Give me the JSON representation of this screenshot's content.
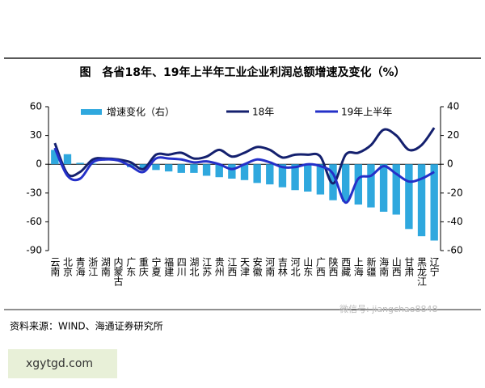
{
  "chart_data": {
    "type": "bar-line",
    "title": "图　各省18年、19年上半年工业企业利润总额增速及变化（%）",
    "source": "资料来源：WIND、海通证券研究所",
    "watermark": "微信号: jiangchao8848",
    "site": "xgytgd.com",
    "categories": [
      "云南",
      "北京",
      "青海",
      "浙江",
      "湖南",
      "内蒙古",
      "广东",
      "重庆",
      "宁夏",
      "福建",
      "四川",
      "湖北",
      "江苏",
      "贵州",
      "江西",
      "天津",
      "安徽",
      "河南",
      "吉林",
      "河北",
      "山东",
      "广西",
      "陕西",
      "西藏",
      "上海",
      "新疆",
      "海南",
      "山西",
      "甘肃",
      "黑龙江",
      "辽宁"
    ],
    "series": [
      {
        "name": "增速变化（右）",
        "type": "bar",
        "axis": "y2",
        "color": "#2fa8de",
        "values": [
          10,
          7,
          1,
          0.5,
          0,
          0,
          -2,
          -3,
          -4,
          -5,
          -6,
          -6,
          -8,
          -9,
          -10,
          -11,
          -13,
          -14,
          -16,
          -18,
          -19,
          -21,
          -25,
          -26,
          -28,
          -30,
          -33,
          -35,
          -45,
          -50,
          -53
        ]
      },
      {
        "name": "18年",
        "type": "line",
        "color": "#14206e",
        "values": [
          22,
          -10,
          -8,
          5,
          6,
          5,
          2,
          -5,
          10,
          10,
          12,
          6,
          8,
          15,
          8,
          12,
          18,
          15,
          7,
          10,
          10,
          8,
          -20,
          10,
          12,
          20,
          36,
          30,
          15,
          20,
          38
        ]
      },
      {
        "name": "19年上半年",
        "type": "line",
        "color": "#2430c8",
        "values": [
          17,
          -12,
          -15,
          2,
          5,
          4,
          -2,
          -8,
          6,
          6,
          5,
          2,
          3,
          0,
          -5,
          0,
          5,
          2,
          -3,
          -3,
          0,
          -2,
          -10,
          -40,
          -15,
          -12,
          -2,
          -10,
          -18,
          -15,
          -8
        ]
      }
    ],
    "ylim": [
      -90,
      60
    ],
    "yticks": [
      60,
      30,
      0,
      -30,
      -60,
      -90
    ],
    "y2lim": [
      -60,
      40
    ],
    "y2ticks": [
      40,
      20,
      0,
      -20,
      -40,
      -60
    ]
  }
}
